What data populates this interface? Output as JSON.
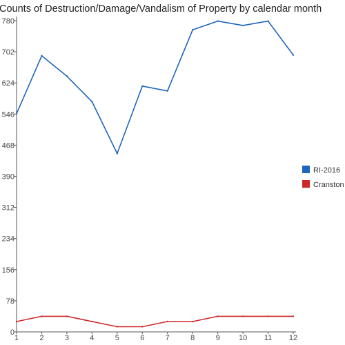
{
  "chart_data": {
    "type": "line",
    "title": "Counts of Destruction/Damage/Vandalism of Property by calendar month",
    "xlabel": "",
    "ylabel": "",
    "categories": [
      "1",
      "2",
      "3",
      "4",
      "5",
      "6",
      "7",
      "8",
      "9",
      "10",
      "11",
      "12"
    ],
    "y_ticks": [
      "0",
      "78",
      "156",
      "234",
      "312",
      "390",
      "468",
      "546",
      "624",
      "702",
      "780"
    ],
    "ylim": [
      0,
      780
    ],
    "grid": false,
    "legend_position": "right",
    "series": [
      {
        "name": "RI-2016",
        "color": "#1f65bd",
        "values": [
          547,
          692,
          641,
          577,
          447,
          616,
          604,
          757,
          779,
          768,
          779,
          694
        ]
      },
      {
        "name": "Cranston",
        "color": "#cc2828",
        "values": [
          26,
          39,
          39,
          26,
          13,
          13,
          26,
          26,
          39,
          39,
          39,
          39
        ]
      }
    ]
  }
}
